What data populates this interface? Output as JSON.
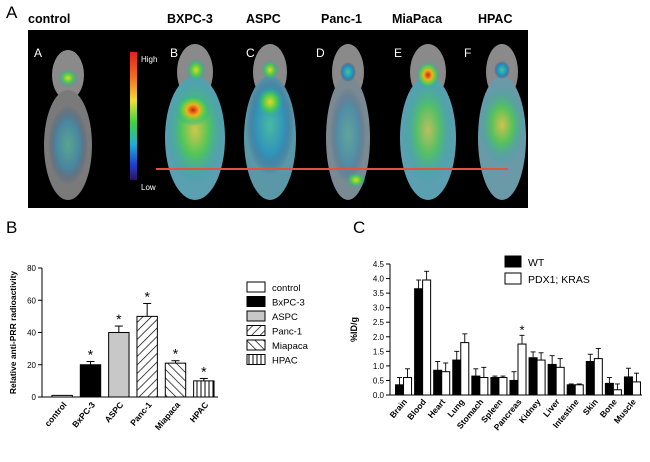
{
  "panel_a": {
    "letter": "A",
    "scan_labels": [
      "control",
      "BXPC-3",
      "ASPC",
      "Panc-1",
      "MiaPaca",
      "HPAC"
    ],
    "sub_letters": [
      "A",
      "B",
      "C",
      "D",
      "E",
      "F"
    ],
    "scale_high": "High",
    "scale_low": "Low",
    "reference_line_color": "#e0533f"
  },
  "panel_b": {
    "letter": "B",
    "legend": [
      "control",
      "BxPC-3",
      "ASPC",
      "Panc-1",
      "Miapaca",
      "HPAC"
    ]
  },
  "panel_c": {
    "letter": "C",
    "legend": [
      "WT",
      "PDX1; KRAS"
    ]
  },
  "chart_data": [
    {
      "type": "bar",
      "panel": "B",
      "categories": [
        "control",
        "BxPC-3",
        "ASPC",
        "Panc-1",
        "Miapaca",
        "HPAC"
      ],
      "values": [
        1,
        20,
        40,
        50,
        21,
        10
      ],
      "errors": [
        0,
        2,
        4,
        8,
        1.5,
        1.5
      ],
      "significant": [
        false,
        true,
        true,
        true,
        true,
        true
      ],
      "ylabel": "Relative anti-PRR radioactivity",
      "ylim": [
        0,
        80
      ],
      "yticks": [
        0,
        20,
        40,
        60,
        80
      ],
      "fills": [
        "#ffffff",
        "#000000",
        "#c8c8c8",
        "hatch-back",
        "hatch-fwd",
        "vertical"
      ]
    },
    {
      "type": "bar",
      "panel": "C",
      "categories": [
        "Brain",
        "Blood",
        "Heart",
        "Lung",
        "Stomach",
        "Spleen",
        "Pancreas",
        "Kidney",
        "Liver",
        "Intestine",
        "Skin",
        "Bone",
        "Muscle"
      ],
      "ylabel": "%ID/g",
      "ylim": [
        0,
        4.5
      ],
      "yticks": [
        0.0,
        0.5,
        1.0,
        1.5,
        2.0,
        2.5,
        3.0,
        3.5,
        4.0,
        4.5
      ],
      "series": [
        {
          "name": "WT",
          "color": "#000000",
          "values": [
            0.35,
            3.65,
            0.85,
            1.2,
            0.65,
            0.6,
            0.5,
            1.28,
            1.05,
            0.35,
            1.15,
            0.4,
            0.62
          ],
          "errors": [
            0.25,
            0.3,
            0.3,
            0.3,
            0.25,
            0.05,
            0.3,
            0.2,
            0.3,
            0.03,
            0.25,
            0.2,
            0.3
          ]
        },
        {
          "name": "PDX1; KRAS",
          "color": "#ffffff",
          "values": [
            0.6,
            3.95,
            0.8,
            1.8,
            0.6,
            0.6,
            1.75,
            1.2,
            0.95,
            0.35,
            1.25,
            0.18,
            0.45
          ],
          "errors": [
            0.3,
            0.3,
            0.3,
            0.3,
            0.35,
            0.05,
            0.3,
            0.25,
            0.3,
            0.03,
            0.35,
            0.2,
            0.3
          ]
        }
      ],
      "significant_categories": [
        "Pancreas"
      ]
    }
  ]
}
